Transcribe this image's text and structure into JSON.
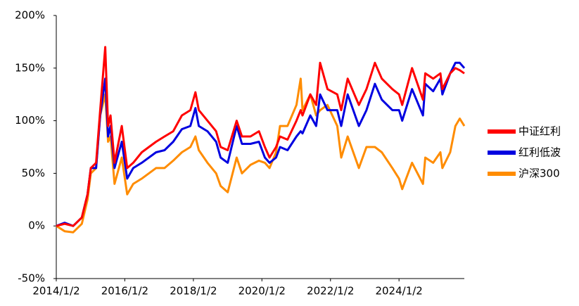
{
  "chart_data": {
    "type": "line",
    "x": [
      "2014/1/2",
      "2014/4/1",
      "2014/7/1",
      "2014/10/1",
      "2014/12/1",
      "2015/1/5",
      "2015/3/2",
      "2015/4/15",
      "2015/6/8",
      "2015/7/8",
      "2015/8/3",
      "2015/9/15",
      "2015/12/1",
      "2016/1/28",
      "2016/4/1",
      "2016/7/1",
      "2016/11/30",
      "2017/3/1",
      "2017/6/1",
      "2017/9/1",
      "2017/12/1",
      "2018/1/24",
      "2018/3/1",
      "2018/6/1",
      "2018/9/1",
      "2018/10/19",
      "2019/1/3",
      "2019/4/8",
      "2019/6/3",
      "2019/9/2",
      "2019/12/2",
      "2020/2/3",
      "2020/3/23",
      "2020/6/1",
      "2020/7/13",
      "2020/10/1",
      "2021/1/4",
      "2021/2/18",
      "2021/3/10",
      "2021/6/1",
      "2021/8/2",
      "2021/9/13",
      "2021/12/1",
      "2022/3/15",
      "2022/4/26",
      "2022/7/4",
      "2022/10/31",
      "2023/1/20",
      "2023/4/20",
      "2023/7/3",
      "2023/10/23",
      "2024/1/2",
      "2024/2/5",
      "2024/5/20",
      "2024/9/13",
      "2024/10/8",
      "2024/12/31",
      "2025/3/18",
      "2025/4/8",
      "2025/6/30",
      "2025/8/25",
      "2025/10/10",
      "2025/11/28"
    ],
    "series": [
      {
        "name": "中证红利",
        "color": "#ff0000",
        "values": [
          0,
          2,
          0,
          8,
          30,
          55,
          60,
          110,
          170,
          95,
          105,
          60,
          95,
          55,
          60,
          70,
          80,
          85,
          90,
          105,
          110,
          127,
          110,
          100,
          90,
          75,
          72,
          100,
          85,
          85,
          90,
          75,
          65,
          75,
          85,
          82,
          100,
          110,
          105,
          125,
          115,
          155,
          130,
          125,
          110,
          140,
          115,
          130,
          155,
          140,
          130,
          125,
          115,
          150,
          120,
          145,
          140,
          145,
          130,
          145,
          150,
          148,
          145
        ]
      },
      {
        "name": "红利低波",
        "color": "#0000e0",
        "values": [
          0,
          3,
          0,
          8,
          30,
          55,
          55,
          105,
          140,
          85,
          95,
          55,
          80,
          45,
          55,
          60,
          70,
          72,
          80,
          92,
          95,
          112,
          95,
          90,
          80,
          65,
          60,
          95,
          78,
          78,
          80,
          65,
          60,
          65,
          75,
          72,
          85,
          90,
          88,
          105,
          95,
          125,
          110,
          110,
          95,
          125,
          95,
          110,
          135,
          120,
          110,
          110,
          100,
          130,
          105,
          135,
          128,
          140,
          125,
          145,
          155,
          155,
          150
        ]
      },
      {
        "name": "沪深300",
        "color": "#ff8c00",
        "values": [
          0,
          -5,
          -6,
          2,
          25,
          50,
          55,
          105,
          125,
          80,
          85,
          40,
          65,
          30,
          40,
          45,
          55,
          55,
          62,
          70,
          75,
          85,
          72,
          60,
          50,
          38,
          32,
          65,
          50,
          58,
          62,
          60,
          55,
          70,
          95,
          95,
          115,
          140,
          110,
          125,
          105,
          110,
          115,
          95,
          65,
          85,
          55,
          75,
          75,
          70,
          55,
          45,
          35,
          60,
          40,
          65,
          60,
          70,
          55,
          70,
          95,
          102,
          95
        ]
      }
    ],
    "xlim": [
      "2014/1/2",
      "2025/11/28"
    ],
    "xticks": [
      "2014/1/2",
      "2016/1/2",
      "2018/1/2",
      "2020/1/2",
      "2022/1/2",
      "2024/1/2"
    ],
    "ylim": [
      -50,
      200
    ],
    "yticks": [
      {
        "value": -50,
        "label": "-50%"
      },
      {
        "value": 0,
        "label": "0%"
      },
      {
        "value": 50,
        "label": "50%"
      },
      {
        "value": 100,
        "label": "100%"
      },
      {
        "value": 150,
        "label": "150%"
      },
      {
        "value": 200,
        "label": "200%"
      }
    ],
    "grid": false,
    "legend": "right"
  }
}
